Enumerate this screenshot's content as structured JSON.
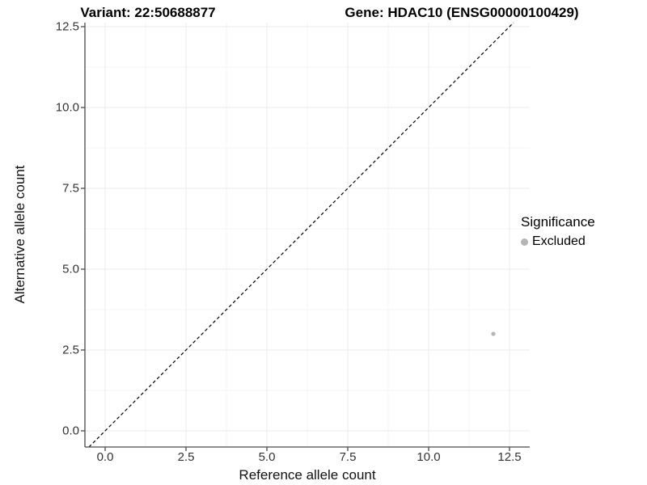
{
  "title": {
    "variant": "Variant: 22:50688877",
    "gene": "Gene: HDAC10 (ENSG00000100429)"
  },
  "axes": {
    "x": {
      "label": "Reference allele count",
      "ticks": [
        "0.0",
        "2.5",
        "5.0",
        "7.5",
        "10.0",
        "12.5"
      ]
    },
    "y": {
      "label": "Alternative allele count",
      "ticks": [
        "0.0",
        "2.5",
        "5.0",
        "7.5",
        "10.0",
        "12.5"
      ]
    }
  },
  "legend": {
    "title": "Significance",
    "items": [
      {
        "label": "Excluded",
        "color": "#b5b5b5"
      }
    ]
  },
  "colors": {
    "grid_major": "#ebebeb",
    "grid_minor": "#f5f5f5",
    "axis_line": "#4a4a4a",
    "identity_line": "#000000",
    "point": "#b5b5b5"
  },
  "chart_data": {
    "type": "scatter",
    "title": "Variant: 22:50688877 | Gene: HDAC10 (ENSG00000100429)",
    "xlabel": "Reference allele count",
    "ylabel": "Alternative allele count",
    "xlim": [
      -0.625,
      13.125
    ],
    "ylim": [
      -0.5,
      12.625
    ],
    "x_ticks": [
      0,
      2.5,
      5,
      7.5,
      10,
      12.5
    ],
    "x_minor_ticks": [
      1.25,
      3.75,
      6.25,
      8.75,
      11.25
    ],
    "y_ticks": [
      0,
      2.5,
      5,
      7.5,
      10,
      12.5
    ],
    "y_minor_ticks": [
      1.25,
      3.75,
      6.25,
      8.75,
      11.25
    ],
    "grid": true,
    "legend_position": "right",
    "reference_line": {
      "type": "identity y=x",
      "style": "dashed"
    },
    "series": [
      {
        "name": "Excluded",
        "points": [
          {
            "x": 12,
            "y": 3
          }
        ]
      }
    ]
  }
}
